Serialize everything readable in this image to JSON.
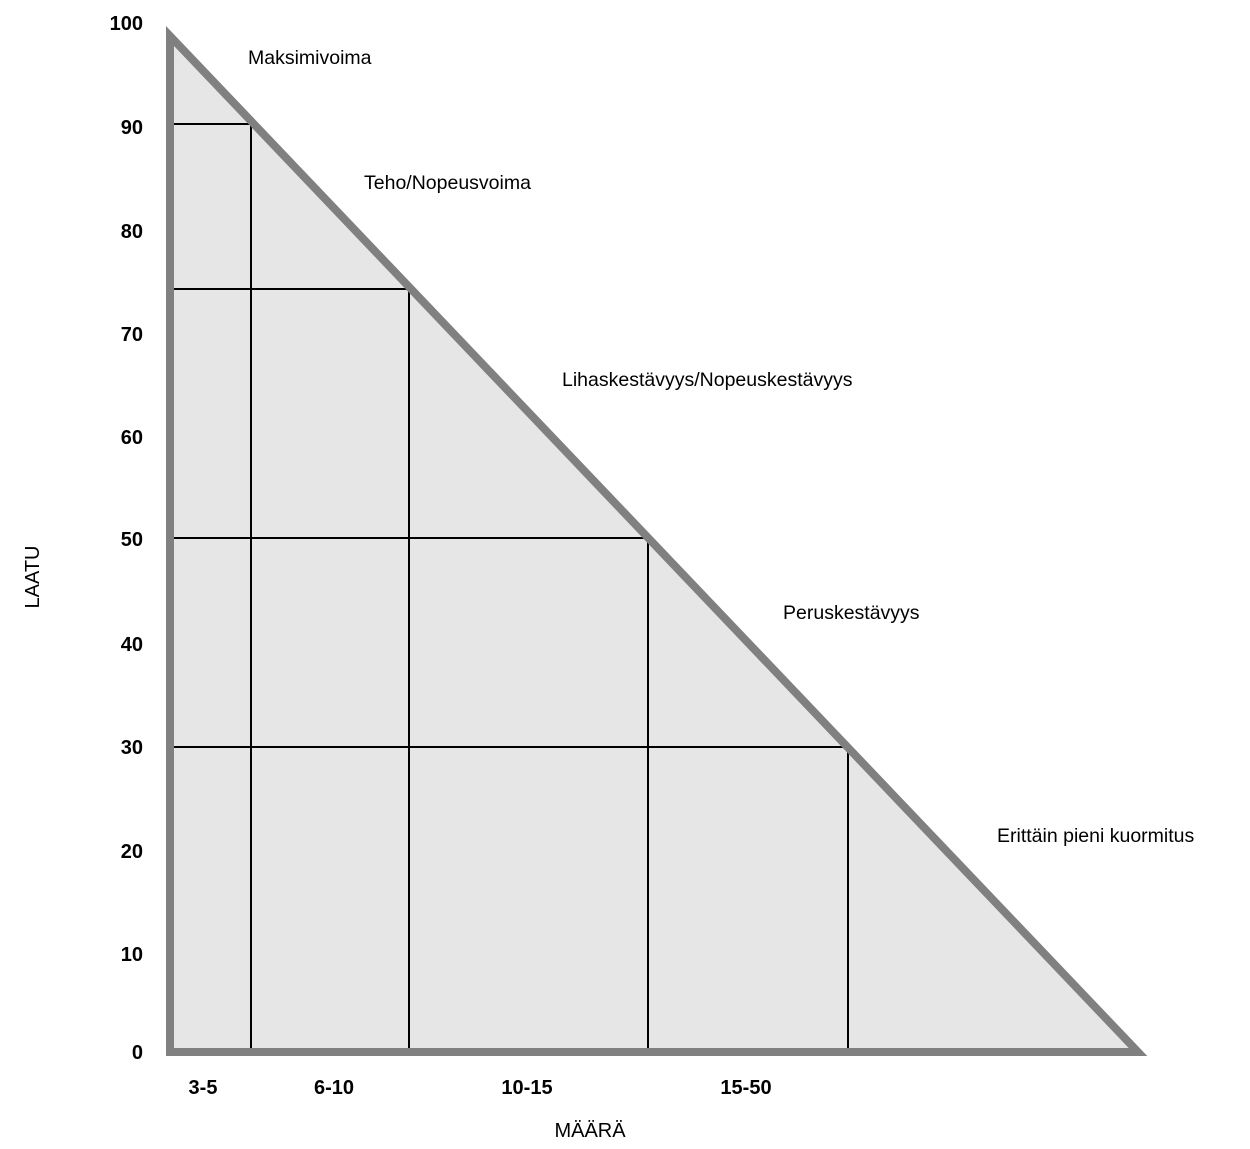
{
  "chart_data": {
    "type": "area",
    "y_axis": {
      "label": "LAATU",
      "ticks": [
        "0",
        "10",
        "20",
        "30",
        "40",
        "50",
        "60",
        "70",
        "80",
        "90",
        "100"
      ],
      "range": [
        0,
        100
      ]
    },
    "x_axis": {
      "label": "MÄÄRÄ",
      "categories": [
        "3-5",
        "6-10",
        "10-15",
        "15-50"
      ]
    },
    "zone_boundaries_laatu": [
      90,
      74,
      50,
      30
    ],
    "zones": [
      {
        "name": "Maksimivoima",
        "laatu_from": 100,
        "laatu_to": 90
      },
      {
        "name": "Teho/Nopeusvoima",
        "laatu_from": 90,
        "laatu_to": 74
      },
      {
        "name": "Lihaskestävyys/Nopeuskestävyys",
        "laatu_from": 74,
        "laatu_to": 50
      },
      {
        "name": "Peruskestävyys",
        "laatu_from": 50,
        "laatu_to": 30
      },
      {
        "name": "Erittäin pieni kuormitus",
        "laatu_from": 30,
        "laatu_to": 0
      }
    ],
    "colors": {
      "fill": "#e6e6e6",
      "outline": "#808080",
      "grid": "#000000"
    }
  }
}
